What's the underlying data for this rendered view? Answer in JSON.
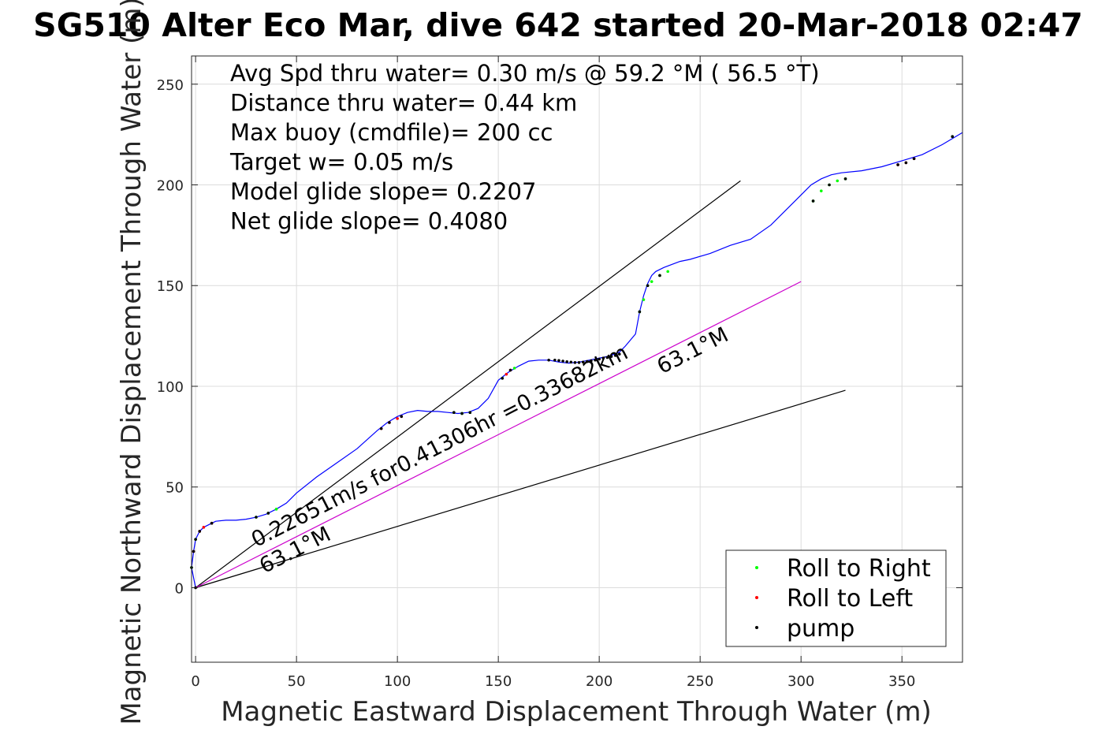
{
  "chart_data": {
    "type": "line",
    "title": "SG510 Alter Eco Mar, dive 642 started 20-Mar-2018 02:47",
    "xlabel": "Magnetic Eastward Displacement Through Water (m)",
    "ylabel": "Magnetic Northward Displacement Through Water (m)",
    "xlim": [
      -2,
      380
    ],
    "ylim": [
      -37,
      264
    ],
    "xticks": [
      0,
      50,
      100,
      150,
      200,
      250,
      300,
      350
    ],
    "yticks": [
      0,
      50,
      100,
      150,
      200,
      250
    ],
    "grid": true,
    "stats": [
      "Avg Spd thru water=  0.30 m/s @  59.2 °M ( 56.5 °T)",
      "Distance thru water=  0.44 km",
      "Max buoy (cmdfile)= 200 cc",
      "Target w= 0.05 m/s",
      "Model glide slope= 0.2207",
      "Net glide slope= 0.4080"
    ],
    "track": {
      "color": "#0000ff",
      "x": [
        0,
        -2,
        -1,
        0,
        2,
        4,
        8,
        10,
        15,
        20,
        25,
        30,
        35,
        40,
        45,
        50,
        60,
        70,
        80,
        90,
        95,
        100,
        105,
        110,
        115,
        120,
        125,
        130,
        135,
        140,
        145,
        150,
        155,
        160,
        165,
        170,
        175,
        180,
        185,
        190,
        195,
        200,
        205,
        210,
        213,
        218,
        220,
        222,
        224,
        226,
        228,
        232,
        236,
        240,
        245,
        255,
        265,
        275,
        285,
        295,
        305,
        310,
        315,
        320,
        330,
        340,
        350,
        360,
        370,
        380
      ],
      "y": [
        0,
        10,
        18,
        24,
        28,
        30,
        32,
        33,
        33.5,
        33.5,
        34,
        35,
        36.5,
        39,
        42,
        47,
        55,
        62,
        69,
        78,
        82,
        85,
        87,
        88,
        87.5,
        87.5,
        87,
        86.5,
        87,
        89,
        94,
        103,
        107,
        110,
        112.5,
        113,
        113,
        112,
        111.5,
        112,
        113,
        114,
        115,
        117,
        120,
        126,
        137,
        145,
        151,
        155,
        157,
        159,
        160.5,
        162,
        163,
        166,
        170,
        173,
        180,
        190,
        200,
        203,
        205,
        206,
        207,
        209,
        212,
        215,
        220,
        226
      ]
    },
    "series": [
      {
        "name": "Roll to Right",
        "color": "#00ff00",
        "points": [
          [
            -2,
            10
          ],
          [
            0,
            24
          ],
          [
            30,
            35
          ],
          [
            36,
            37
          ],
          [
            40,
            39
          ],
          [
            128,
            87
          ],
          [
            132,
            86.5
          ],
          [
            136,
            87
          ],
          [
            152,
            104
          ],
          [
            158,
            109
          ],
          [
            220,
            137
          ],
          [
            222,
            143
          ],
          [
            224,
            150
          ],
          [
            226,
            152
          ],
          [
            230,
            155
          ],
          [
            234,
            157
          ],
          [
            306,
            192
          ],
          [
            310,
            197
          ],
          [
            314,
            200
          ],
          [
            318,
            202
          ],
          [
            322,
            203
          ],
          [
            375,
            224
          ]
        ]
      },
      {
        "name": "Roll to Left",
        "color": "#ff0000",
        "points": [
          [
            -1,
            18
          ],
          [
            2,
            28
          ],
          [
            4,
            30
          ],
          [
            8,
            32
          ],
          [
            92,
            79
          ],
          [
            96,
            82
          ],
          [
            100,
            84
          ],
          [
            102,
            85
          ],
          [
            154,
            106
          ],
          [
            156,
            108
          ],
          [
            348,
            210
          ],
          [
            352,
            211
          ],
          [
            356,
            213
          ]
        ]
      },
      {
        "name": "pump",
        "color": "#000000",
        "points": [
          [
            0,
            0
          ],
          [
            -2,
            10
          ],
          [
            -1,
            18
          ],
          [
            0,
            24
          ],
          [
            2,
            28
          ],
          [
            8,
            32
          ],
          [
            30,
            35
          ],
          [
            36,
            37
          ],
          [
            92,
            79
          ],
          [
            96,
            82
          ],
          [
            102,
            85
          ],
          [
            128,
            87
          ],
          [
            132,
            86.5
          ],
          [
            136,
            87
          ],
          [
            152,
            104
          ],
          [
            156,
            108
          ],
          [
            175,
            113
          ],
          [
            178,
            113
          ],
          [
            180,
            112.8
          ],
          [
            182,
            112.5
          ],
          [
            184,
            112.2
          ],
          [
            186,
            112
          ],
          [
            188,
            111.8
          ],
          [
            190,
            111.8
          ],
          [
            192,
            112
          ],
          [
            194,
            112.3
          ],
          [
            196,
            112.7
          ],
          [
            198,
            113
          ],
          [
            200,
            113.5
          ],
          [
            202,
            114
          ],
          [
            204,
            114.3
          ],
          [
            206,
            114.8
          ],
          [
            208,
            115.3
          ],
          [
            210,
            116
          ],
          [
            220,
            137
          ],
          [
            224,
            150
          ],
          [
            230,
            155
          ],
          [
            306,
            192
          ],
          [
            314,
            200
          ],
          [
            322,
            203
          ],
          [
            348,
            210
          ],
          [
            352,
            211
          ],
          [
            356,
            213
          ],
          [
            375,
            224
          ]
        ]
      }
    ],
    "reference_lines": [
      {
        "color": "#000000",
        "x": [
          0,
          270
        ],
        "y": [
          0,
          202
        ]
      },
      {
        "color": "#000000",
        "x": [
          0,
          322
        ],
        "y": [
          0,
          98
        ]
      },
      {
        "color": "#cc00cc",
        "x": [
          0,
          300
        ],
        "y": [
          0,
          152
        ]
      }
    ],
    "annotations": [
      {
        "text": "0.22651m/s for0.41306hr =0.33682km",
        "x": 30,
        "y": 20,
        "rotation": -27
      },
      {
        "text": "63.1°M",
        "x": 34,
        "y": 7,
        "rotation": -27
      },
      {
        "text": "63.1°M",
        "x": 231,
        "y": 106,
        "rotation": -27
      }
    ],
    "legend": {
      "position": "bottom-right",
      "entries": [
        "Roll to Right",
        "Roll to Left",
        "pump"
      ]
    }
  }
}
